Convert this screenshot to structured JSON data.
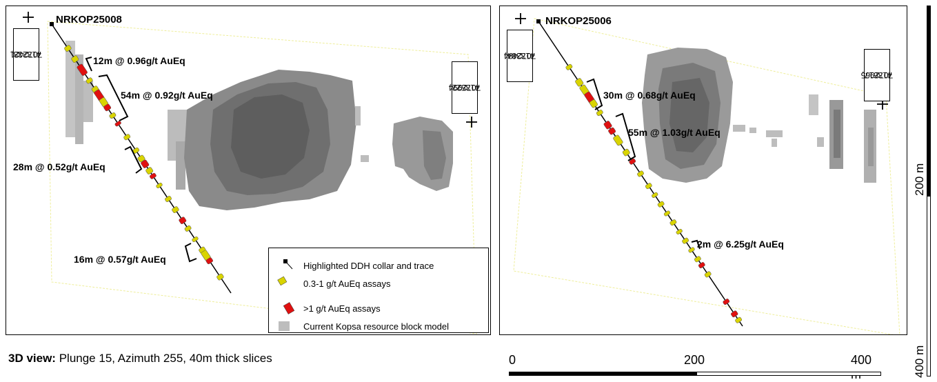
{
  "left_panel": {
    "hole_id": "NRKOP25008",
    "coord_top_left": [
      "413238,",
      "7072421"
    ],
    "coord_top_right": [
      "413522,",
      "7072994"
    ],
    "intercepts": [
      "12m @ 0.96g/t AuEq",
      "54m @ 0.92g/t AuEq",
      "28m @ 0.52g/t AuEq",
      "16m @ 0.57g/t AuEq"
    ]
  },
  "right_panel": {
    "hole_id": "NRKOP25006",
    "coord_top_left": [
      "413384,",
      "7072494"
    ],
    "coord_top_right": [
      "413617,",
      "7072965"
    ],
    "intercepts": [
      "30m @ 0.68g/t AuEq",
      "55m @ 1.03g/t AuEq",
      "2m @ 6.25g/t AuEq"
    ]
  },
  "legend": {
    "collar": "Highlighted DDH collar and trace",
    "low_grade": "0.3-1 g/t AuEq assays",
    "high_grade": ">1 g/t AuEq assays",
    "block_model": "Current Kopsa resource block model"
  },
  "caption": {
    "bold": "3D view:",
    "text": " Plunge 15, Azimuth 255, 40m thick slices"
  },
  "scale_h": {
    "labels": [
      "0",
      "200",
      "400 m"
    ]
  },
  "scale_v": {
    "labels": [
      "200 m",
      "400 m"
    ]
  },
  "colors": {
    "low_grade": "#d9d400",
    "high_grade": "#e01010",
    "block_model": "#8a8a8a",
    "block_model_light": "#c4c4c4",
    "slice_outline": "#eeee99"
  }
}
